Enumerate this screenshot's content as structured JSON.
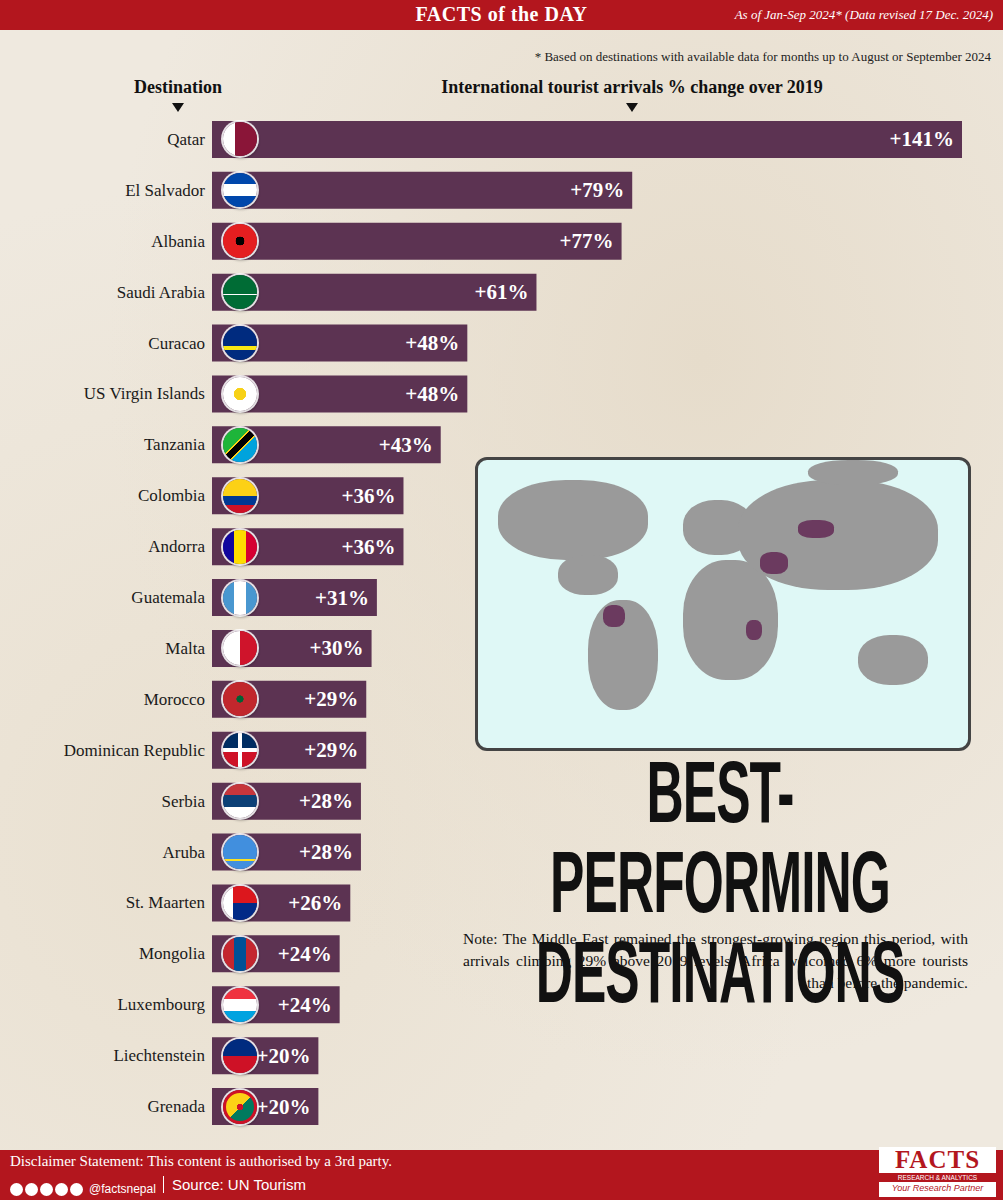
{
  "header": {
    "title": "FACTS of the DAY",
    "date_note": "As of Jan-Sep 2024* (Data revised 17 Dec. 2024)",
    "footnote": "* Based on destinations with available data for months up to August or September 2024"
  },
  "chart_data": {
    "type": "bar",
    "orientation": "horizontal",
    "title": "BEST-PERFORMING DESTINATIONS",
    "xlabel": "International tourist arrivals % change over 2019",
    "ylabel": "Destination",
    "categories": [
      "Qatar",
      "El Salvador",
      "Albania",
      "Saudi Arabia",
      "Curacao",
      "US Virgin Islands",
      "Tanzania",
      "Colombia",
      "Andorra",
      "Guatemala",
      "Malta",
      "Morocco",
      "Dominican Republic",
      "Serbia",
      "Aruba",
      "St. Maarten",
      "Mongolia",
      "Luxembourg",
      "Liechtenstein",
      "Grenada"
    ],
    "values": [
      141,
      79,
      77,
      61,
      48,
      48,
      43,
      36,
      36,
      31,
      30,
      29,
      29,
      28,
      28,
      26,
      24,
      24,
      20,
      20
    ],
    "value_labels": [
      "+141%",
      "+79%",
      "+77%",
      "+61%",
      "+48%",
      "+48%",
      "+43%",
      "+36%",
      "+36%",
      "+31%",
      "+30%",
      "+29%",
      "+29%",
      "+28%",
      "+28%",
      "+26%",
      "+24%",
      "+24%",
      "+20%",
      "+20%"
    ],
    "color": "#5c3352",
    "xlim": [
      0,
      141
    ],
    "data_labels": true,
    "tick_labels": "y",
    "grid": false,
    "annotations": [
      "Note: The Middle East remained the strongest-growing region this period, with arrivals climbing 29% above 2019 levels. Africa welcomed 6% more tourists than before the pandemic."
    ]
  },
  "footer": {
    "disclaimer": "Disclaimer Statement: This content is authorised by a 3rd party.",
    "handle": "@factsnepal",
    "source": "Source: UN Tourism",
    "logo": {
      "name": "FACTS",
      "tagline": "RESEARCH & ANALYTICS",
      "slogan": "Your Research Partner"
    }
  }
}
